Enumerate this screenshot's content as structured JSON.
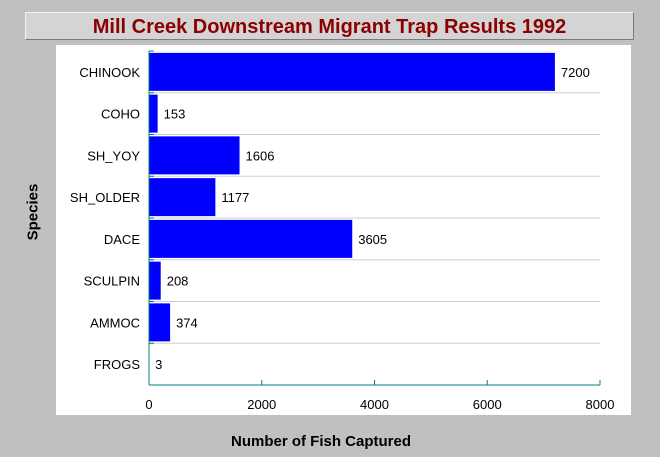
{
  "chart_data": {
    "type": "bar",
    "orientation": "horizontal",
    "title": "Mill Creek Downstream Migrant Trap Results 1992",
    "xlabel": "Number of Fish Captured",
    "ylabel": "Species",
    "categories": [
      "CHINOOK",
      "COHO",
      "SH_YOY",
      "SH_OLDER",
      "DACE",
      "SCULPIN",
      "AMMOC",
      "FROGS"
    ],
    "values": [
      7200,
      153,
      1606,
      1177,
      3605,
      208,
      374,
      3
    ],
    "xlim": [
      0,
      8000
    ],
    "xticks": [
      0,
      2000,
      4000,
      6000,
      8000
    ],
    "grid": true,
    "bar_color": "#0000ff",
    "title_color": "#8b0000",
    "axis_color": "#008080"
  }
}
